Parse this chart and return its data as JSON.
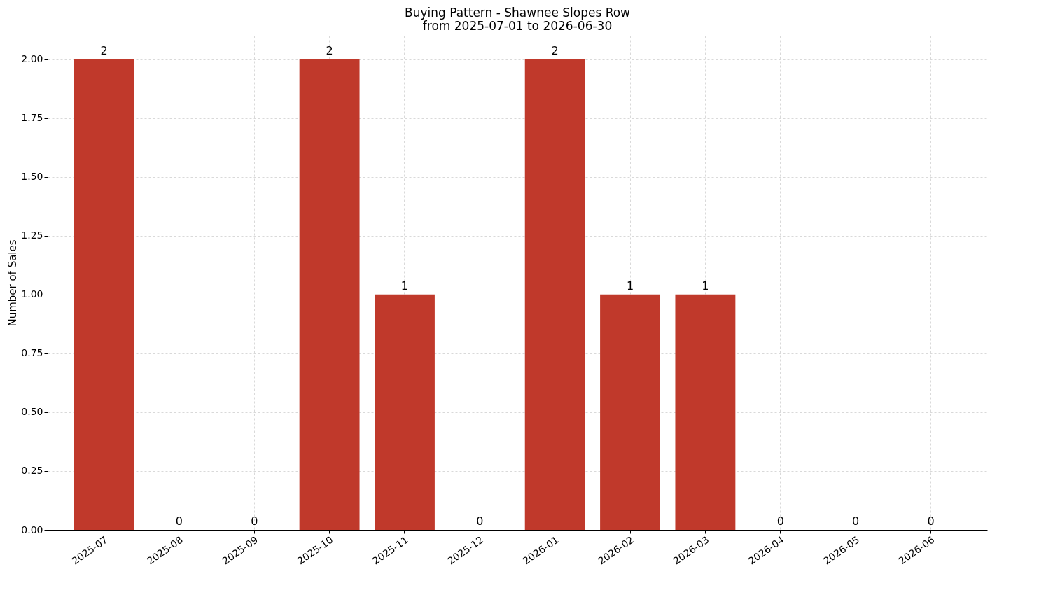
{
  "chart_data": {
    "type": "bar",
    "title": "Buying Pattern - Shawnee Slopes Row",
    "subtitle": "from 2025-07-01 to 2026-06-30",
    "ylabel": "Number of Sales",
    "categories": [
      "2025-07",
      "2025-08",
      "2025-09",
      "2025-10",
      "2025-11",
      "2025-12",
      "2026-01",
      "2026-02",
      "2026-03",
      "2026-04",
      "2026-05",
      "2026-06"
    ],
    "values": [
      2,
      0,
      0,
      2,
      1,
      0,
      2,
      1,
      1,
      0,
      0,
      0
    ],
    "color": "#c0392b",
    "ylim": [
      0,
      2.1
    ],
    "yticks": [
      {
        "value": 0,
        "label": "0.00"
      },
      {
        "value": 0.25,
        "label": "0.25"
      },
      {
        "value": 0.5,
        "label": "0.50"
      },
      {
        "value": 0.75,
        "label": "0.75"
      },
      {
        "value": 1,
        "label": "1.00"
      },
      {
        "value": 1.25,
        "label": "1.25"
      },
      {
        "value": 1.5,
        "label": "1.50"
      },
      {
        "value": 1.75,
        "label": "1.75"
      },
      {
        "value": 2,
        "label": "2.00"
      }
    ],
    "grid": true,
    "data_labels": true
  }
}
